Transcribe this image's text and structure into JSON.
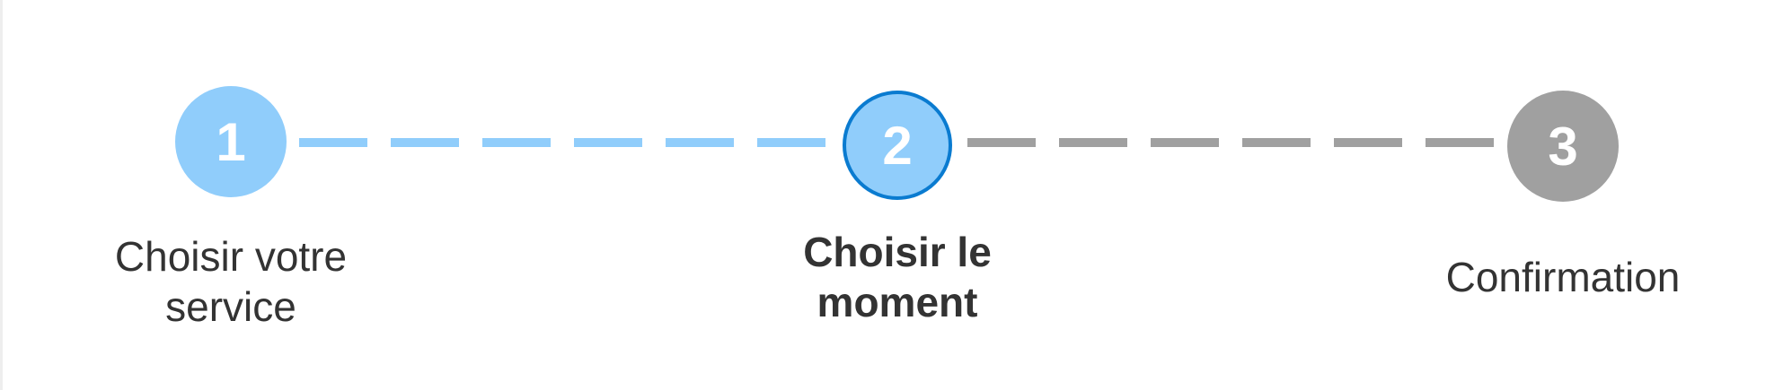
{
  "stepper": {
    "steps": [
      {
        "number": "1",
        "label": "Choisir votre service",
        "state": "completed"
      },
      {
        "number": "2",
        "label": "Choisir le moment",
        "state": "current"
      },
      {
        "number": "3",
        "label": "Confirmation",
        "state": "upcoming"
      }
    ]
  },
  "colors": {
    "completed": "#90cdfb",
    "current_border": "#0a7bd0",
    "upcoming": "#a0a0a0",
    "label_text": "#333333"
  }
}
